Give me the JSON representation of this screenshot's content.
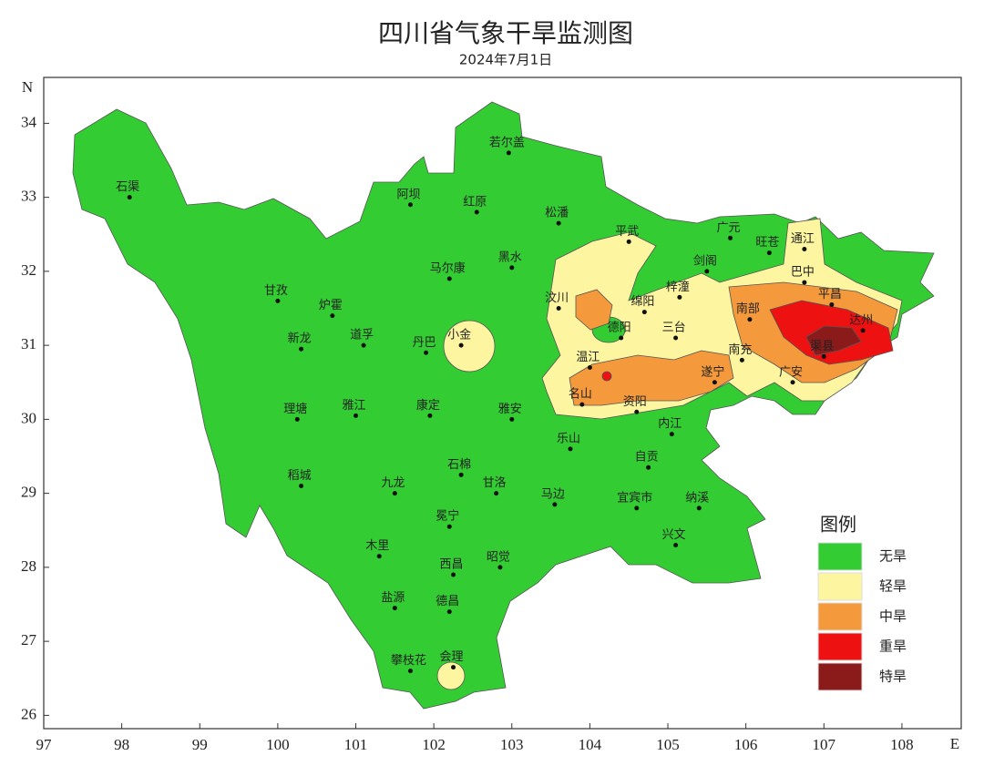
{
  "title": "四川省气象干旱监测图",
  "subtitle": "2024年7月1日",
  "map": {
    "xlim": [
      97,
      108.76
    ],
    "ylim": [
      25.82,
      34.62
    ],
    "xticks": [
      97,
      98,
      99,
      100,
      101,
      102,
      103,
      104,
      105,
      106,
      107,
      108
    ],
    "yticks": [
      26,
      27,
      28,
      29,
      30,
      31,
      32,
      33,
      34
    ],
    "x_axis_label": "E",
    "y_axis_label": "N"
  },
  "cities": [
    {
      "name": "石渠",
      "lon": 98.1,
      "lat": 33.0
    },
    {
      "name": "若尔盖",
      "lon": 102.96,
      "lat": 33.6
    },
    {
      "name": "阿坝",
      "lon": 101.7,
      "lat": 32.9
    },
    {
      "name": "红原",
      "lon": 102.55,
      "lat": 32.8
    },
    {
      "name": "松潘",
      "lon": 103.6,
      "lat": 32.65
    },
    {
      "name": "平武",
      "lon": 104.5,
      "lat": 32.4
    },
    {
      "name": "广元",
      "lon": 105.8,
      "lat": 32.45
    },
    {
      "name": "旺苍",
      "lon": 106.3,
      "lat": 32.25
    },
    {
      "name": "通江",
      "lon": 106.75,
      "lat": 32.3
    },
    {
      "name": "马尔康",
      "lon": 102.2,
      "lat": 31.9
    },
    {
      "name": "黑水",
      "lon": 103.0,
      "lat": 32.05
    },
    {
      "name": "剑阁",
      "lon": 105.5,
      "lat": 32.0
    },
    {
      "name": "巴中",
      "lon": 106.75,
      "lat": 31.85
    },
    {
      "name": "甘孜",
      "lon": 100.0,
      "lat": 31.6
    },
    {
      "name": "炉霍",
      "lon": 100.7,
      "lat": 31.4
    },
    {
      "name": "梓潼",
      "lon": 105.15,
      "lat": 31.65
    },
    {
      "name": "平昌",
      "lon": 107.1,
      "lat": 31.55
    },
    {
      "name": "汶川",
      "lon": 103.6,
      "lat": 31.5
    },
    {
      "name": "绵阳",
      "lon": 104.7,
      "lat": 31.45
    },
    {
      "name": "南部",
      "lon": 106.05,
      "lat": 31.35
    },
    {
      "name": "达州",
      "lon": 107.5,
      "lat": 31.2
    },
    {
      "name": "德阳",
      "lon": 104.4,
      "lat": 31.1
    },
    {
      "name": "三台",
      "lon": 105.1,
      "lat": 31.1
    },
    {
      "name": "新龙",
      "lon": 100.3,
      "lat": 30.95
    },
    {
      "name": "道孚",
      "lon": 101.1,
      "lat": 31.0
    },
    {
      "name": "丹巴",
      "lon": 101.9,
      "lat": 30.9
    },
    {
      "name": "小金",
      "lon": 102.35,
      "lat": 31.0
    },
    {
      "name": "渠县",
      "lon": 107.0,
      "lat": 30.85
    },
    {
      "name": "南充",
      "lon": 105.95,
      "lat": 30.8
    },
    {
      "name": "温江",
      "lon": 104.0,
      "lat": 30.7
    },
    {
      "name": "遂宁",
      "lon": 105.6,
      "lat": 30.5
    },
    {
      "name": "广安",
      "lon": 106.6,
      "lat": 30.5
    },
    {
      "name": "名山",
      "lon": 103.9,
      "lat": 30.2
    },
    {
      "name": "资阳",
      "lon": 104.6,
      "lat": 30.1
    },
    {
      "name": "理塘",
      "lon": 100.25,
      "lat": 30.0
    },
    {
      "name": "雅江",
      "lon": 101.0,
      "lat": 30.05
    },
    {
      "name": "康定",
      "lon": 101.95,
      "lat": 30.05
    },
    {
      "name": "雅安",
      "lon": 103.0,
      "lat": 30.0
    },
    {
      "name": "内江",
      "lon": 105.05,
      "lat": 29.8
    },
    {
      "name": "乐山",
      "lon": 103.75,
      "lat": 29.6
    },
    {
      "name": "自贡",
      "lon": 104.75,
      "lat": 29.35
    },
    {
      "name": "石棉",
      "lon": 102.35,
      "lat": 29.25
    },
    {
      "name": "稻城",
      "lon": 100.3,
      "lat": 29.1
    },
    {
      "name": "九龙",
      "lon": 101.5,
      "lat": 29.0
    },
    {
      "name": "甘洛",
      "lon": 102.8,
      "lat": 29.0
    },
    {
      "name": "马边",
      "lon": 103.55,
      "lat": 28.85
    },
    {
      "name": "宜宾市",
      "lon": 104.6,
      "lat": 28.8
    },
    {
      "name": "纳溪",
      "lon": 105.4,
      "lat": 28.8
    },
    {
      "name": "冕宁",
      "lon": 102.2,
      "lat": 28.55
    },
    {
      "name": "兴文",
      "lon": 105.1,
      "lat": 28.3
    },
    {
      "name": "木里",
      "lon": 101.3,
      "lat": 28.15
    },
    {
      "name": "昭觉",
      "lon": 102.85,
      "lat": 28.0
    },
    {
      "name": "西昌",
      "lon": 102.25,
      "lat": 27.9
    },
    {
      "name": "盐源",
      "lon": 101.5,
      "lat": 27.45
    },
    {
      "name": "德昌",
      "lon": 102.2,
      "lat": 27.4
    },
    {
      "name": "会理",
      "lon": 102.25,
      "lat": 26.65
    },
    {
      "name": "攀枝花",
      "lon": 101.7,
      "lat": 26.6
    }
  ],
  "legend": {
    "title": "图例",
    "items": [
      {
        "label": "无旱",
        "color": "#33cc33"
      },
      {
        "label": "轻旱",
        "color": "#fdf5a0"
      },
      {
        "label": "中旱",
        "color": "#f59a3c"
      },
      {
        "label": "重旱",
        "color": "#ee1111"
      },
      {
        "label": "特旱",
        "color": "#8b1a1a"
      }
    ]
  }
}
